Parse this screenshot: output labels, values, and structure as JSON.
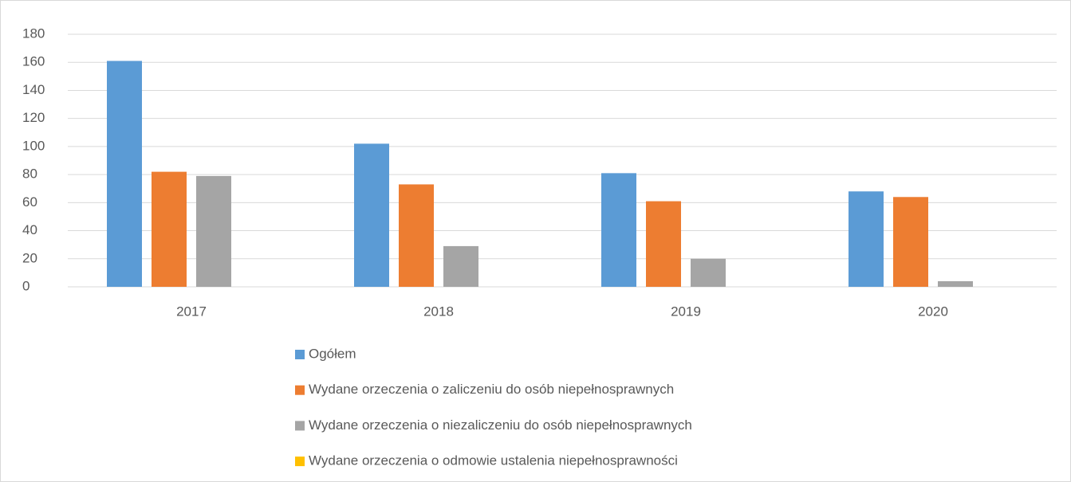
{
  "chart_data": {
    "type": "bar",
    "categories": [
      "2017",
      "2018",
      "2019",
      "2020"
    ],
    "series": [
      {
        "name": "Ogółem",
        "color": "#5b9bd5",
        "values": [
          161,
          102,
          81,
          68
        ]
      },
      {
        "name": "Wydane orzeczenia o zaliczeniu do osób niepełnosprawnych",
        "color": "#ed7d31",
        "values": [
          82,
          73,
          61,
          64
        ]
      },
      {
        "name": "Wydane orzeczenia o niezaliczeniu do osób niepełnosprawnych",
        "color": "#a5a5a5",
        "values": [
          79,
          29,
          20,
          4
        ]
      },
      {
        "name": "Wydane orzeczenia o odmowie ustalenia niepełnosprawności",
        "color": "#ffc000",
        "values": [
          0,
          0,
          0,
          0
        ]
      }
    ],
    "ylim": [
      0,
      180
    ],
    "yticks": [
      0,
      20,
      40,
      60,
      80,
      100,
      120,
      140,
      160,
      180
    ],
    "grid": true,
    "legend": "bottom"
  }
}
